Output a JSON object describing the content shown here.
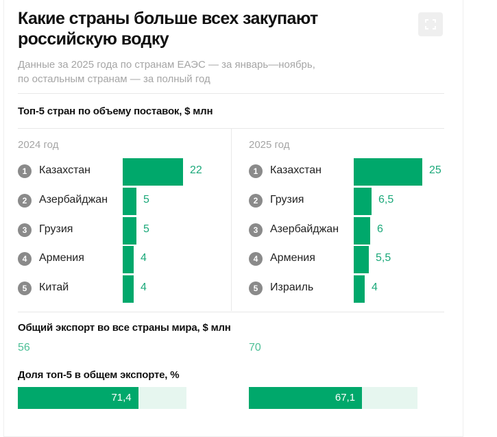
{
  "header": {
    "title": "Какие страны больше всех закупают российскую водку",
    "subtitle_lines": [
      "Данные за 2025 года по странам ЕАЭС — за январь—ноябрь,",
      "по остальным странам — за полный год"
    ],
    "expand_icon": "fullscreen-icon"
  },
  "chart_data": [
    {
      "type": "bar",
      "title": "Топ-5 стран по объему поставок, $ млн",
      "panel": "2024 год",
      "categories": [
        "Казахстан",
        "Азербайджан",
        "Грузия",
        "Армения",
        "Китай"
      ],
      "ranks": [
        "1",
        "2",
        "3",
        "4",
        "5"
      ],
      "values": [
        22,
        5,
        5,
        4,
        4
      ],
      "labels": [
        "22",
        "5",
        "5",
        "4",
        "4"
      ],
      "color": "#00a86b"
    },
    {
      "type": "bar",
      "title": "Топ-5 стран по объему поставок, $ млн",
      "panel": "2025 год",
      "categories": [
        "Казахстан",
        "Грузия",
        "Азербайджан",
        "Армения",
        "Израиль"
      ],
      "ranks": [
        "1",
        "2",
        "3",
        "4",
        "5"
      ],
      "values": [
        25,
        6.5,
        6,
        5.5,
        4
      ],
      "labels": [
        "25",
        "6,5",
        "6",
        "5,5",
        "4"
      ],
      "color": "#00a86b"
    }
  ],
  "totals": {
    "title": "Общий экспорт во все страны мира, $ млн",
    "v2024": "56",
    "v2025": "70"
  },
  "share": {
    "title": "Доля топ-5 в общем экспорте, %",
    "items": [
      {
        "value": 71.4,
        "label": "71,4"
      },
      {
        "value": 67.1,
        "label": "67,1"
      }
    ]
  }
}
